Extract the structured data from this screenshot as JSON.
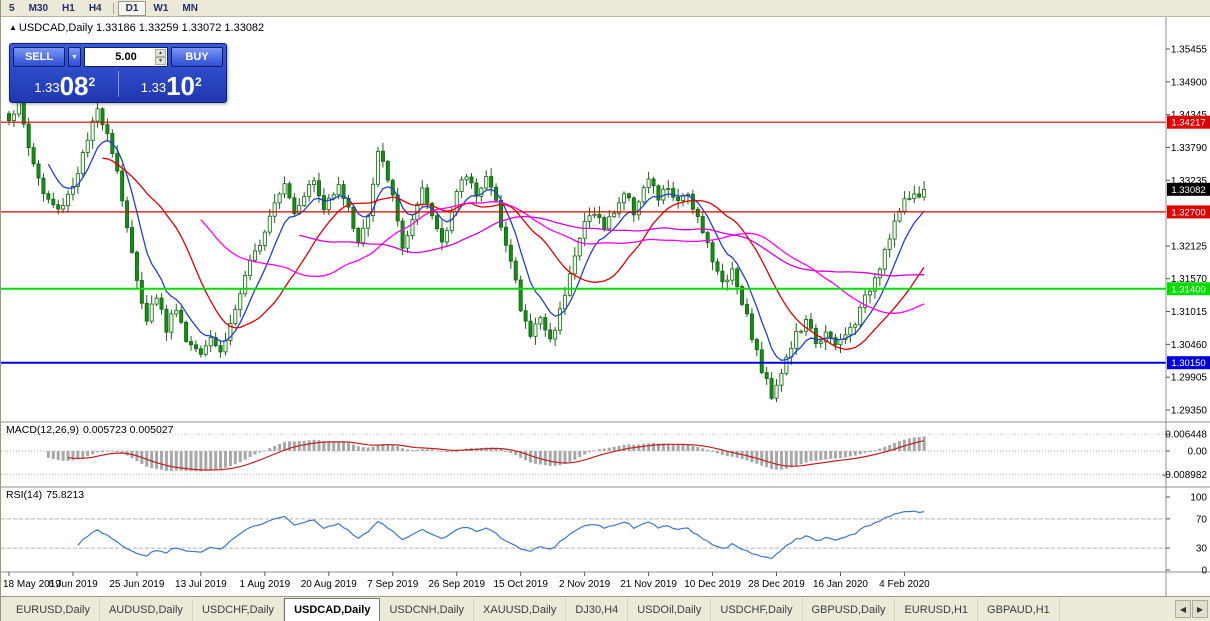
{
  "toolbar": {
    "timeframes": [
      "5",
      "M30",
      "H1",
      "H4",
      "D1",
      "W1",
      "MN"
    ],
    "active": "D1"
  },
  "chart_header": {
    "symbol": "USDCAD,Daily",
    "ohlc": "1.33186 1.33259 1.33072 1.33082"
  },
  "trade_panel": {
    "sell_label": "SELL",
    "buy_label": "BUY",
    "volume": "5.00",
    "sell_price": {
      "prefix": "1.33",
      "big": "08",
      "sup": "2"
    },
    "buy_price": {
      "prefix": "1.33",
      "big": "10",
      "sup": "2"
    }
  },
  "indicators": {
    "macd": {
      "name": "MACD(12,26,9)",
      "values": "0.005723 0.005027"
    },
    "rsi": {
      "name": "RSI(14)",
      "value": "75.8213"
    }
  },
  "tab_bar": {
    "tabs": [
      "EURUSD,Daily",
      "AUDUSD,Daily",
      "USDCHF,Daily",
      "USDCAD,Daily",
      "USDCNH,Daily",
      "XAUUSD,Daily",
      "DJ30,H4",
      "USDOil,Daily",
      "USDCHF,Daily",
      "GBPUSD,Daily",
      "EURUSD,H1",
      "GBPAUD,H1"
    ],
    "active_index": 3,
    "left_arrow": "◀",
    "right_arrow": "▶"
  },
  "chart_data": {
    "type": "candlestick",
    "symbol": "USDCAD",
    "timeframe": "Daily",
    "bar_count": 187,
    "current_price": {
      "value": 1.33082,
      "label": "1.33082",
      "color": "#000000"
    },
    "levels": [
      {
        "price": 1.34217,
        "label": "1.34217",
        "color": "#dd0000",
        "width": 1.2
      },
      {
        "price": 1.327,
        "label": "1.32700",
        "color": "#dd0000",
        "width": 1.2
      },
      {
        "price": 1.314,
        "label": "1.31400",
        "color": "#00dd00",
        "width": 2
      },
      {
        "price": 1.3015,
        "label": "1.30150",
        "color": "#0000dd",
        "width": 2
      }
    ],
    "y_axis": {
      "values": [
        1.35455,
        1.349,
        1.34345,
        1.3379,
        1.33235,
        1.32125,
        1.3157,
        1.31015,
        1.3046,
        1.29905,
        1.2935
      ],
      "labels": [
        "1.35455",
        "1.34900",
        "1.34345",
        "1.33790",
        "1.33235",
        "1.32125",
        "1.31570",
        "1.31015",
        "1.30460",
        "1.29905",
        "1.29350"
      ]
    },
    "x_axis": {
      "labels": [
        "18 May 2019",
        "6 Jun 2019",
        "25 Jun 2019",
        "13 Jul 2019",
        "1 Aug 2019",
        "20 Aug 2019",
        "7 Sep 2019",
        "26 Sep 2019",
        "15 Oct 2019",
        "2 Nov 2019",
        "21 Nov 2019",
        "10 Dec 2019",
        "28 Dec 2019",
        "16 Jan 2020",
        "4 Feb 2020"
      ],
      "day_index": [
        0,
        13,
        26,
        39,
        52,
        65,
        78,
        91,
        104,
        117,
        130,
        143,
        156,
        169,
        182
      ]
    },
    "price_path": [
      [
        0,
        1.343
      ],
      [
        2,
        1.3452
      ],
      [
        4,
        1.338
      ],
      [
        7,
        1.33
      ],
      [
        10,
        1.3272
      ],
      [
        13,
        1.3315
      ],
      [
        16,
        1.339
      ],
      [
        18,
        1.3442
      ],
      [
        20,
        1.3408
      ],
      [
        22,
        1.334
      ],
      [
        24,
        1.3245
      ],
      [
        26,
        1.315
      ],
      [
        28,
        1.3092
      ],
      [
        30,
        1.313
      ],
      [
        32,
        1.3072
      ],
      [
        34,
        1.3112
      ],
      [
        36,
        1.3052
      ],
      [
        39,
        1.3038
      ],
      [
        41,
        1.3062
      ],
      [
        43,
        1.3032
      ],
      [
        45,
        1.308
      ],
      [
        47,
        1.3132
      ],
      [
        49,
        1.318
      ],
      [
        52,
        1.3242
      ],
      [
        54,
        1.3292
      ],
      [
        56,
        1.3322
      ],
      [
        58,
        1.3272
      ],
      [
        60,
        1.3302
      ],
      [
        62,
        1.3322
      ],
      [
        64,
        1.3272
      ],
      [
        65,
        1.3292
      ],
      [
        67,
        1.3322
      ],
      [
        69,
        1.3272
      ],
      [
        71,
        1.3222
      ],
      [
        73,
        1.3262
      ],
      [
        75,
        1.3368
      ],
      [
        77,
        1.333
      ],
      [
        78,
        1.3292
      ],
      [
        80,
        1.3212
      ],
      [
        82,
        1.3252
      ],
      [
        84,
        1.3302
      ],
      [
        86,
        1.3262
      ],
      [
        88,
        1.3222
      ],
      [
        90,
        1.3272
      ],
      [
        91,
        1.3302
      ],
      [
        93,
        1.3332
      ],
      [
        95,
        1.3302
      ],
      [
        97,
        1.333
      ],
      [
        99,
        1.3282
      ],
      [
        101,
        1.3222
      ],
      [
        103,
        1.3152
      ],
      [
        104,
        1.3102
      ],
      [
        106,
        1.3062
      ],
      [
        108,
        1.3092
      ],
      [
        110,
        1.3052
      ],
      [
        112,
        1.3102
      ],
      [
        114,
        1.3172
      ],
      [
        116,
        1.3222
      ],
      [
        117,
        1.3252
      ],
      [
        119,
        1.3272
      ],
      [
        121,
        1.3242
      ],
      [
        123,
        1.3272
      ],
      [
        125,
        1.3302
      ],
      [
        127,
        1.3272
      ],
      [
        129,
        1.3312
      ],
      [
        130,
        1.3322
      ],
      [
        132,
        1.3292
      ],
      [
        134,
        1.3312
      ],
      [
        136,
        1.3282
      ],
      [
        138,
        1.3302
      ],
      [
        140,
        1.3262
      ],
      [
        142,
        1.3222
      ],
      [
        143,
        1.3182
      ],
      [
        145,
        1.3152
      ],
      [
        147,
        1.3172
      ],
      [
        149,
        1.3122
      ],
      [
        151,
        1.3062
      ],
      [
        153,
        1.3002
      ],
      [
        155,
        1.2962
      ],
      [
        156,
        1.2982
      ],
      [
        158,
        1.3022
      ],
      [
        160,
        1.3062
      ],
      [
        162,
        1.3082
      ],
      [
        164,
        1.3052
      ],
      [
        166,
        1.3062
      ],
      [
        168,
        1.3042
      ],
      [
        169,
        1.3052
      ],
      [
        171,
        1.3072
      ],
      [
        173,
        1.3102
      ],
      [
        175,
        1.3142
      ],
      [
        177,
        1.3182
      ],
      [
        179,
        1.3232
      ],
      [
        181,
        1.3272
      ],
      [
        183,
        1.3295
      ],
      [
        186,
        1.3308
      ]
    ],
    "moving_averages": [
      {
        "type": "ema",
        "period": 8,
        "color": "#2040cc"
      },
      {
        "type": "sma",
        "period": 20,
        "color": "#e00000"
      },
      {
        "type": "sma",
        "period": 40,
        "color": "#ff00ff"
      },
      {
        "type": "sma",
        "period": 60,
        "color": "#d800d8"
      }
    ],
    "candle_colors": {
      "bull_fill": "#eef9ea",
      "bear_fill": "#1b8a1b",
      "outline": "#146414"
    },
    "macd": {
      "fast": 12,
      "slow": 26,
      "signal": 9,
      "axis_labels": [
        "0.006448",
        "0.00",
        "-0.008982"
      ],
      "axis_values": [
        0.006448,
        0,
        -0.008982
      ],
      "histogram_color": "#a8a8a8",
      "signal_color": "#c02020"
    },
    "rsi": {
      "period": 14,
      "axis_labels": [
        "100",
        "70",
        "30",
        "0"
      ],
      "axis_values": [
        100,
        70,
        30,
        0
      ],
      "line_color": "#3c78c8",
      "level_lines": [
        70,
        30
      ]
    }
  }
}
